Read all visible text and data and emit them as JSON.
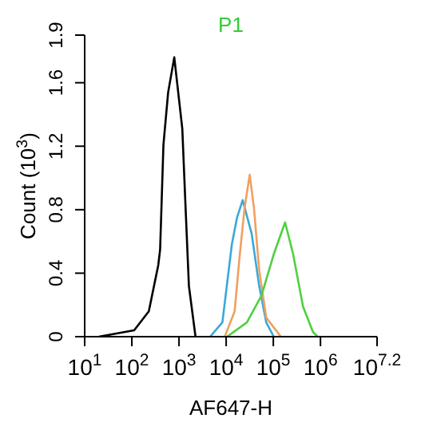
{
  "chart_data": {
    "type": "line",
    "title": "P1",
    "xlabel": "AF647-H",
    "ylabel": "Count (10$^{3}$)",
    "log": "x",
    "xlim": [
      10,
      15848932
    ],
    "xticks": [
      {
        "value": 10,
        "label": "10$^{1}$"
      },
      {
        "value": 100,
        "label": "10$^{2}$"
      },
      {
        "value": 1000,
        "label": "10$^{3}$"
      },
      {
        "value": 10000,
        "label": "10$^{4}$"
      },
      {
        "value": 100000,
        "label": "10$^{5}$"
      },
      {
        "value": 1000000,
        "label": "10$^{6}$"
      },
      {
        "value": 15848932,
        "label": "10$^{7.2}$"
      }
    ],
    "ylim": [
      0,
      1.9
    ],
    "yticks": [
      0,
      0.4,
      0.8,
      1.2,
      1.6,
      1.9
    ],
    "grid": false,
    "legend": false,
    "marker": "none",
    "line_style": "solid",
    "series": [
      {
        "color": "#000000",
        "x": [
          20,
          112,
          229,
          363,
          398,
          468,
          589,
          794,
          1175,
          1380,
          1622,
          2239
        ],
        "values": [
          0,
          0.04,
          0.16,
          0.45,
          0.55,
          1.21,
          1.54,
          1.76,
          1.31,
          0.81,
          0.32,
          0
        ]
      },
      {
        "color": "#3aa8d8",
        "x": [
          4571,
          8318,
          13183,
          16982,
          22387,
          34674,
          50119,
          70795,
          102329
        ],
        "values": [
          0,
          0.09,
          0.58,
          0.75,
          0.86,
          0.65,
          0.32,
          0.09,
          0
        ]
      },
      {
        "color": "#f0a060",
        "x": [
          9333,
          15136,
          19055,
          24547,
          31623,
          38905,
          50119,
          70795,
          144544
        ],
        "values": [
          0,
          0.16,
          0.49,
          0.81,
          1.02,
          0.81,
          0.42,
          0.12,
          0
        ]
      },
      {
        "color": "#50d040",
        "x": [
          10471,
          27542,
          56234,
          102329,
          177828,
          263027,
          426580,
          691831,
          870964
        ],
        "values": [
          0,
          0.09,
          0.26,
          0.52,
          0.72,
          0.52,
          0.19,
          0.03,
          0
        ]
      }
    ]
  }
}
